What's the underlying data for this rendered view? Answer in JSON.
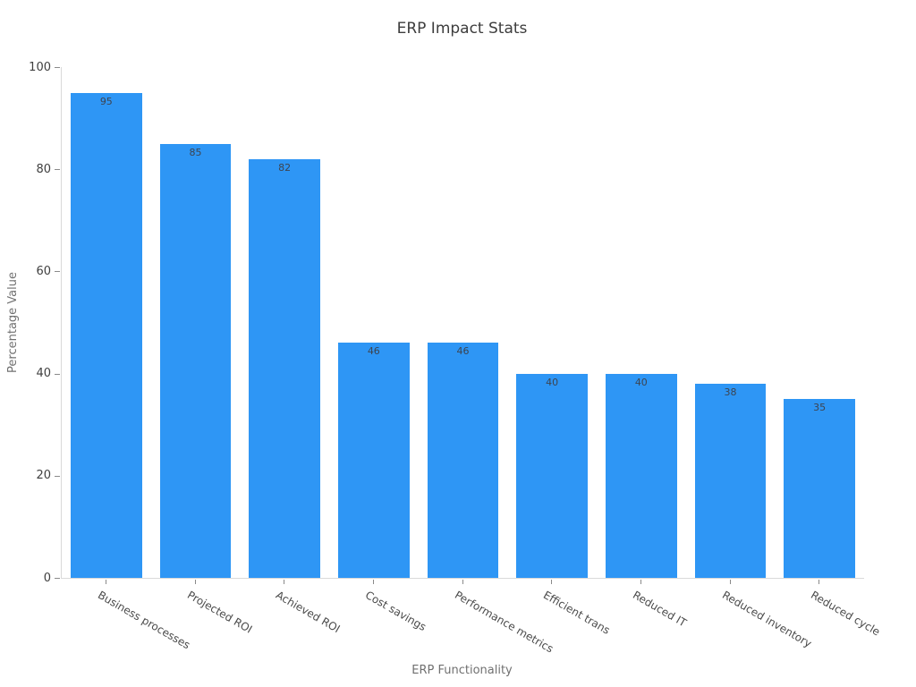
{
  "chart_data": {
    "type": "bar",
    "title": "ERP Impact Stats",
    "xlabel": "ERP Functionality",
    "ylabel": "Percentage Value",
    "categories": [
      "Business processes",
      "Projected ROI",
      "Achieved ROI",
      "Cost savings",
      "Performance metrics",
      "Efficient trans",
      "Reduced IT",
      "Reduced inventory",
      "Reduced cycle"
    ],
    "values": [
      95,
      85,
      82,
      46,
      46,
      40,
      40,
      38,
      35
    ],
    "ylim": [
      0,
      100
    ],
    "yticks": [
      0,
      20,
      40,
      60,
      80,
      100
    ],
    "bar_color": "#2E96F5",
    "axis_line_color": "#d9d9d9",
    "grid": false,
    "legend_position": "none",
    "value_labels_position": "inside-top",
    "xtick_angle_deg": 30
  }
}
